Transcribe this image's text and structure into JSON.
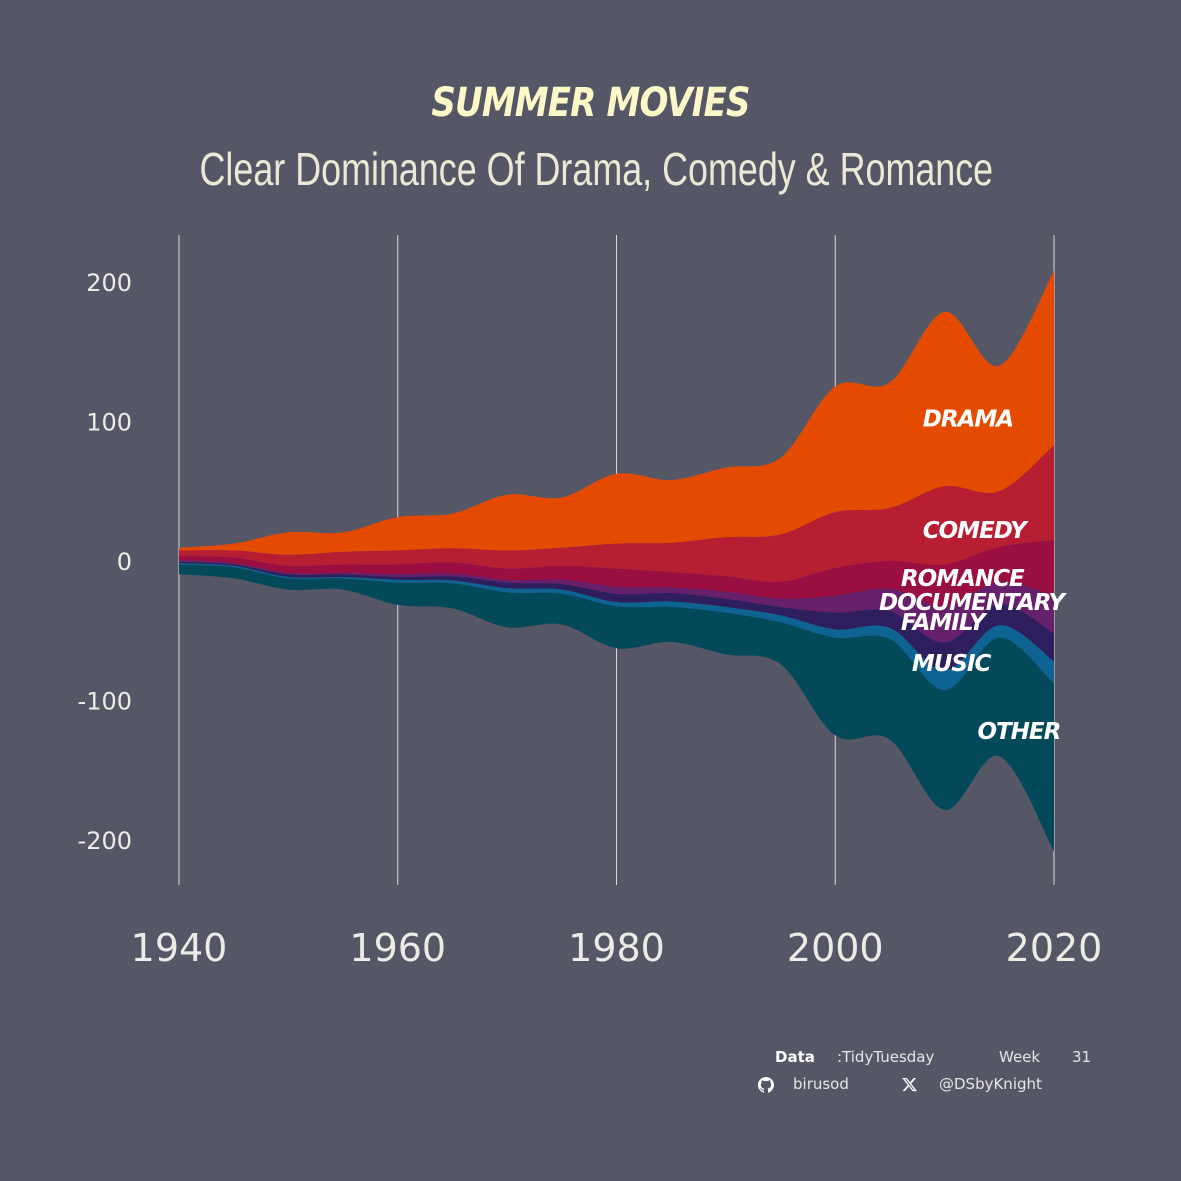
{
  "title": "SUMMER MOVIES",
  "subtitle": "Clear Dominance Of Drama, Comedy & Romance",
  "caption": {
    "data_label": "Data",
    "data_value": ":TidyTuesday",
    "week_label": "Week",
    "week_value": "31",
    "github_icon": "github-icon",
    "github_handle": "birusod",
    "x_icon": "x-twitter-icon",
    "x_handle": "@DSbyKnight"
  },
  "colors": {
    "background": "#565766",
    "title": "#fdf8c7",
    "grid": "#d9d9d9",
    "Drama": "#e54b00",
    "Comedy": "#b81e32",
    "Romance": "#9a0e42",
    "Documentary": "#66206c",
    "Family": "#2e1e5e",
    "Music": "#0d6391",
    "Other": "#04495a"
  },
  "chart_data": {
    "type": "area",
    "subtype": "streamgraph",
    "title": "SUMMER MOVIES",
    "subtitle": "Clear Dominance Of Drama, Comedy & Romance",
    "x": [
      1940,
      1945,
      1950,
      1955,
      1960,
      1965,
      1970,
      1975,
      1980,
      1985,
      1990,
      1995,
      2000,
      2005,
      2010,
      2015,
      2020
    ],
    "xlim": [
      1940,
      2020
    ],
    "ylim": [
      -230,
      230
    ],
    "xticks": [
      1940,
      1960,
      1980,
      2000,
      2020
    ],
    "yticks": [
      200,
      100,
      0,
      -100,
      -200
    ],
    "ytick_labels": [
      "200",
      "100",
      "0",
      "-100",
      "-200"
    ],
    "grid": "vertical",
    "legend": "direct labels",
    "series": [
      {
        "name": "Drama",
        "values": [
          2,
          5,
          16,
          14,
          24,
          25,
          40,
          36,
          50,
          45,
          50,
          55,
          90,
          90,
          125,
          90,
          125
        ]
      },
      {
        "name": "Comedy",
        "values": [
          4,
          5,
          8,
          9,
          10,
          10,
          13,
          13,
          18,
          21,
          28,
          34,
          40,
          38,
          56,
          40,
          68
        ]
      },
      {
        "name": "Romance",
        "values": [
          3,
          4,
          5,
          6,
          7,
          8,
          8,
          10,
          13,
          11,
          11,
          12,
          20,
          20,
          30,
          25,
          40
        ]
      },
      {
        "name": "Documentary",
        "values": [
          1,
          1,
          1,
          1,
          2,
          2,
          2,
          3,
          5,
          4,
          5,
          6,
          12,
          16,
          26,
          16,
          27
        ]
      },
      {
        "name": "Family",
        "values": [
          1,
          1,
          2,
          2,
          2,
          3,
          4,
          4,
          6,
          6,
          6,
          6,
          12,
          12,
          20,
          15,
          20
        ]
      },
      {
        "name": "Music",
        "values": [
          1,
          1,
          1,
          1,
          2,
          2,
          3,
          3,
          3,
          4,
          4,
          5,
          6,
          8,
          14,
          9,
          16
        ]
      },
      {
        "name": "Other",
        "values": [
          7,
          8,
          8,
          8,
          16,
          18,
          25,
          22,
          30,
          25,
          30,
          30,
          70,
          72,
          86,
          85,
          120
        ]
      }
    ],
    "labels": [
      {
        "text": "DRAMA",
        "series": "Drama"
      },
      {
        "text": "COMEDY",
        "series": "Comedy"
      },
      {
        "text": "ROMANCE",
        "series": "Romance"
      },
      {
        "text": "DOCUMENTARY",
        "series": "Documentary"
      },
      {
        "text": "FAMILY",
        "series": "Family"
      },
      {
        "text": "MUSIC",
        "series": "Music"
      },
      {
        "text": "OTHER",
        "series": "Other"
      }
    ]
  }
}
